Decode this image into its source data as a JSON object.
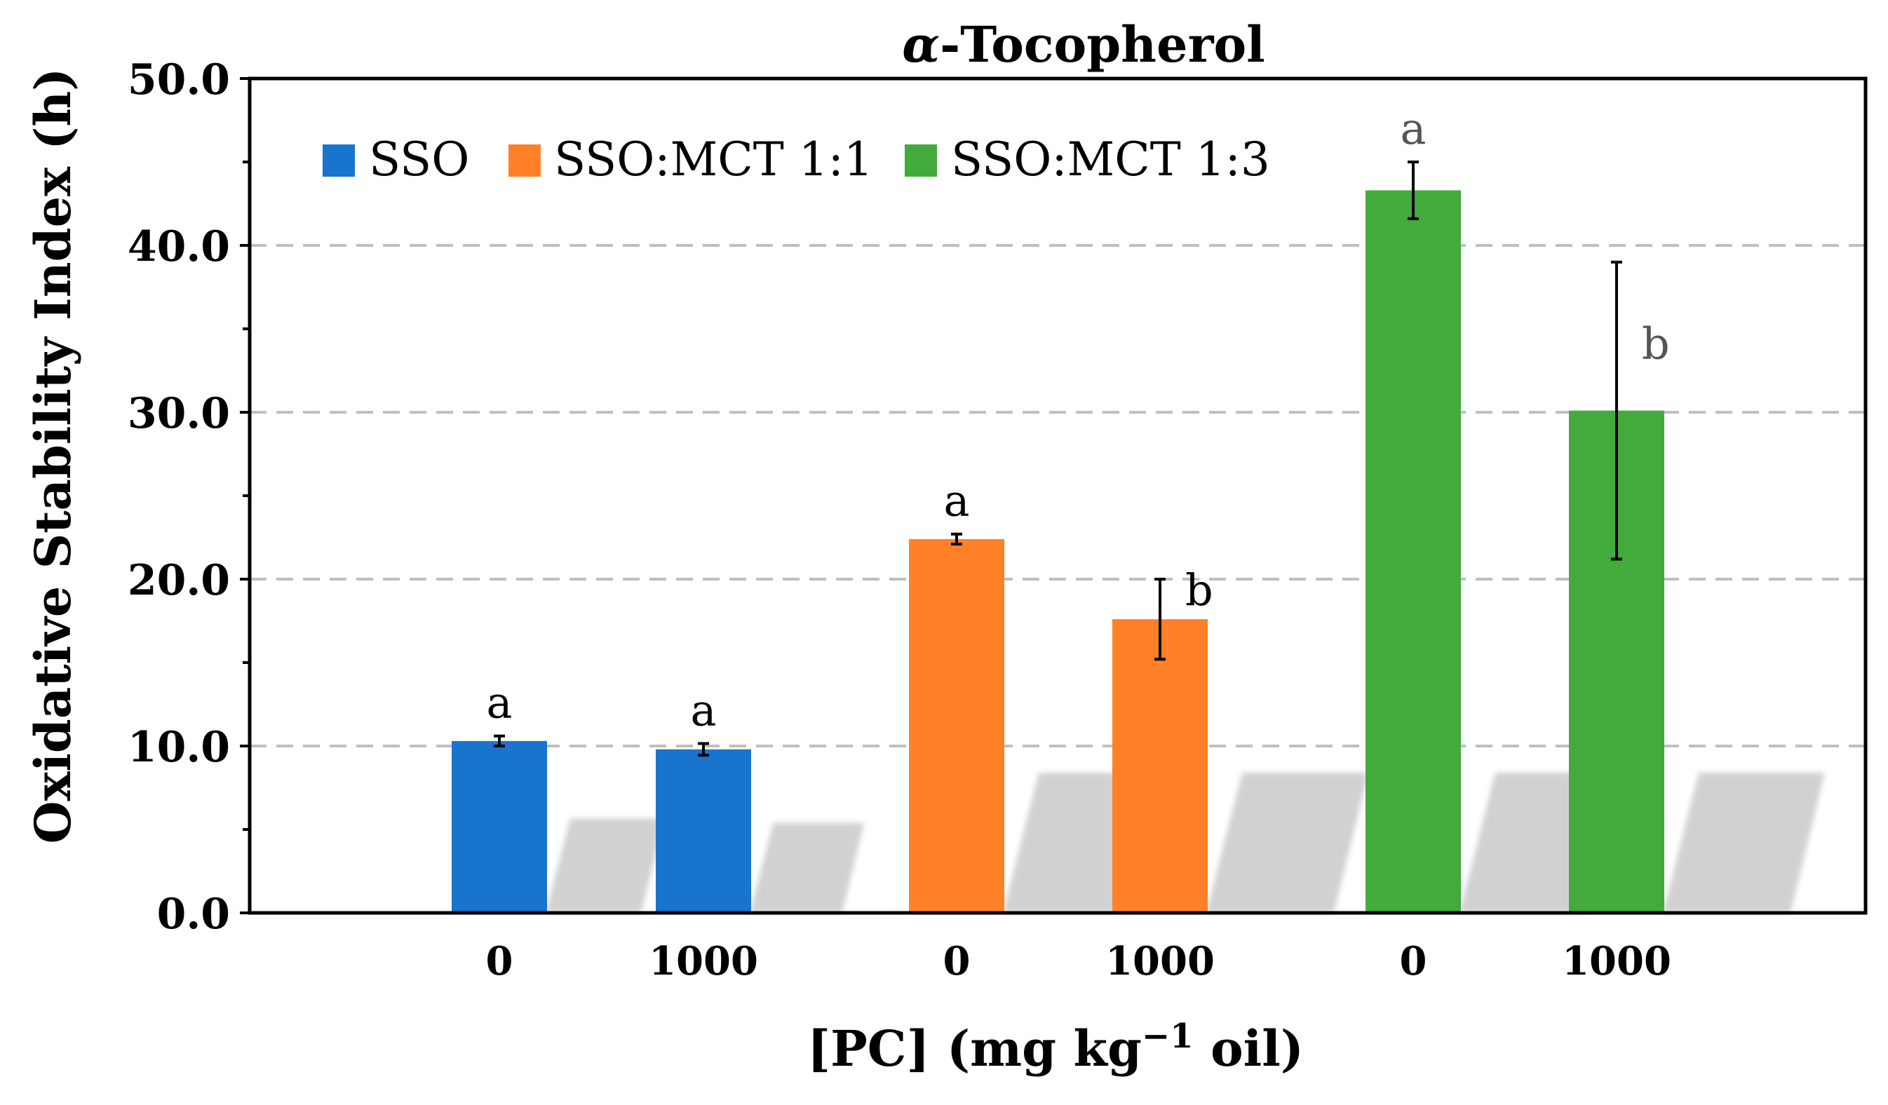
{
  "chart_data": {
    "type": "bar",
    "title_symbol": "α",
    "title_rest": "-Tocopherol",
    "ylabel": "Oxidative Stability Index (h)",
    "xlabel_main": "[PC] (mg kg",
    "xlabel_sup": "−1",
    "xlabel_tail": " oil)",
    "ylim": [
      0,
      50
    ],
    "yticks": [
      "0.0",
      "10.0",
      "20.0",
      "30.0",
      "40.0",
      "50.0"
    ],
    "ytick_values": [
      0,
      10,
      20,
      30,
      40,
      50
    ],
    "grid": "dashed horizontal at 10, 20, 30, 40",
    "legend_position": "top-left",
    "series": [
      {
        "name": "SSO",
        "color": "#1874CD",
        "categories": [
          "0",
          "1000"
        ],
        "values": [
          10.3,
          9.8
        ],
        "errors": [
          0.3,
          0.35
        ],
        "letters": [
          "a",
          "a"
        ]
      },
      {
        "name": "SSO:MCT 1:1",
        "color": "#FF8027",
        "categories": [
          "0",
          "1000"
        ],
        "values": [
          22.4,
          17.6
        ],
        "errors": [
          0.3,
          2.4
        ],
        "letters": [
          "a",
          "b"
        ]
      },
      {
        "name": "SSO:MCT 1:3",
        "color": "#43AB3B",
        "categories": [
          "0",
          "1000"
        ],
        "values": [
          43.3,
          30.1
        ],
        "errors": [
          1.7,
          8.9
        ],
        "letters": [
          "a",
          "b"
        ]
      }
    ]
  }
}
